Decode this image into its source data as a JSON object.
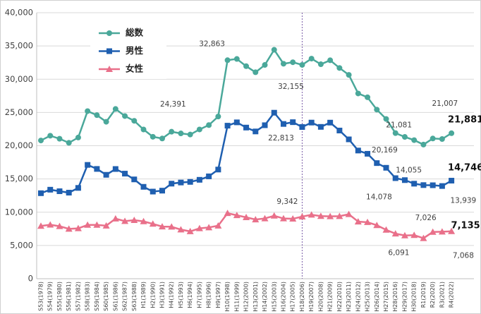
{
  "chart_data": {
    "type": "line",
    "categories": [
      "S53(1978)",
      "S54(1979)",
      "S55(1980)",
      "S56(1981)",
      "S57(1982)",
      "S58(1983)",
      "S59(1984)",
      "S60(1985)",
      "S61(1986)",
      "S62(1987)",
      "S63(1988)",
      "H1(1989)",
      "H2(1990)",
      "H3(1991)",
      "H4(1992)",
      "H5(1993)",
      "H6(1994)",
      "H7(1995)",
      "H8(1996)",
      "H9(1997)",
      "H10(1998)",
      "H11(1999)",
      "H12(2000)",
      "H13(2001)",
      "H14(2002)",
      "H15(2003)",
      "H16(2004)",
      "H17(2005)",
      "H18(2006)",
      "H19(2007)",
      "H20(2008)",
      "H21(2009)",
      "H22(2010)",
      "H23(2011)",
      "H24(2012)",
      "H25(2013)",
      "H26(2014)",
      "H27(2015)",
      "H28(2016)",
      "H29(2017)",
      "H30(2018)",
      "R1(2019)",
      "R2(2020)",
      "R3(2021)",
      "R4(2022)"
    ],
    "series": [
      {
        "name": "総数",
        "color": "#4aa89a",
        "marker": "circle",
        "values": [
          20788,
          21503,
          21048,
          20434,
          21228,
          25202,
          24596,
          23599,
          25524,
          24460,
          23742,
          22436,
          21346,
          21084,
          22104,
          21851,
          21679,
          22445,
          23104,
          24391,
          32863,
          33048,
          31957,
          31042,
          32143,
          34427,
          32325,
          32552,
          32155,
          33093,
          32249,
          32845,
          31690,
          30651,
          27858,
          27283,
          25427,
          24025,
          21897,
          21321,
          20840,
          20169,
          21081,
          21007,
          21881
        ],
        "value_labels": [
          null,
          null,
          null,
          null,
          null,
          null,
          null,
          null,
          null,
          null,
          null,
          null,
          null,
          null,
          null,
          null,
          null,
          null,
          null,
          "24,391",
          "32,863",
          null,
          null,
          null,
          null,
          null,
          null,
          null,
          "32,155",
          null,
          null,
          null,
          null,
          null,
          null,
          null,
          null,
          null,
          null,
          null,
          null,
          "20,169",
          "21,081",
          "21,007",
          "21,881"
        ]
      },
      {
        "name": "男性",
        "color": "#1f5fb0",
        "marker": "square",
        "values": [
          12859,
          13386,
          13155,
          12942,
          13654,
          17116,
          16508,
          15624,
          16497,
          15802,
          14934,
          13818,
          13102,
          13242,
          14296,
          14468,
          14560,
          14874,
          15393,
          16416,
          23013,
          23512,
          22727,
          22144,
          23080,
          24963,
          23272,
          23540,
          22813,
          23478,
          22831,
          23472,
          22283,
          20955,
          19273,
          18787,
          17386,
          16681,
          15121,
          14826,
          14290,
          14078,
          14055,
          13939,
          14746
        ],
        "value_labels": [
          null,
          null,
          null,
          null,
          null,
          null,
          null,
          null,
          null,
          null,
          null,
          null,
          null,
          null,
          null,
          null,
          null,
          null,
          null,
          null,
          null,
          null,
          null,
          null,
          null,
          null,
          null,
          null,
          "22,813",
          null,
          null,
          null,
          null,
          null,
          null,
          null,
          null,
          null,
          null,
          null,
          null,
          "14,078",
          "14,055",
          "13,939",
          "14,746"
        ]
      },
      {
        "name": "女性",
        "color": "#e9708a",
        "marker": "triangle",
        "values": [
          7929,
          8117,
          7893,
          7492,
          7574,
          8086,
          8088,
          7975,
          9027,
          8658,
          8808,
          8618,
          8244,
          7842,
          7808,
          7383,
          7119,
          7571,
          7711,
          7975,
          9850,
          9536,
          9230,
          8898,
          9063,
          9464,
          9053,
          9012,
          9342,
          9615,
          9418,
          9373,
          9407,
          9696,
          8585,
          8496,
          8041,
          7344,
          6776,
          6495,
          6550,
          6091,
          7026,
          7068,
          7135
        ],
        "value_labels": [
          null,
          null,
          null,
          null,
          null,
          null,
          null,
          null,
          null,
          null,
          null,
          null,
          null,
          null,
          null,
          null,
          null,
          null,
          null,
          null,
          null,
          null,
          null,
          null,
          null,
          null,
          null,
          null,
          "9,342",
          null,
          null,
          null,
          null,
          null,
          null,
          null,
          null,
          null,
          null,
          null,
          null,
          "6,091",
          "7,026",
          "7,068",
          "7,135"
        ]
      }
    ],
    "ylim": [
      0,
      40000
    ],
    "yticks": [
      0,
      {
        "value": 5000,
        "label": "5,000"
      },
      {
        "value": 10000,
        "label": "10,000"
      },
      {
        "value": 15000,
        "label": "15,000"
      },
      {
        "value": 20000,
        "label": "20,000"
      },
      {
        "value": 25000,
        "label": "25,000"
      },
      {
        "value": 30000,
        "label": "30,000"
      },
      {
        "value": 35000,
        "label": "35,000"
      },
      {
        "value": 40000,
        "label": "40,000"
      }
    ],
    "grid": true,
    "legend": "upper left"
  }
}
